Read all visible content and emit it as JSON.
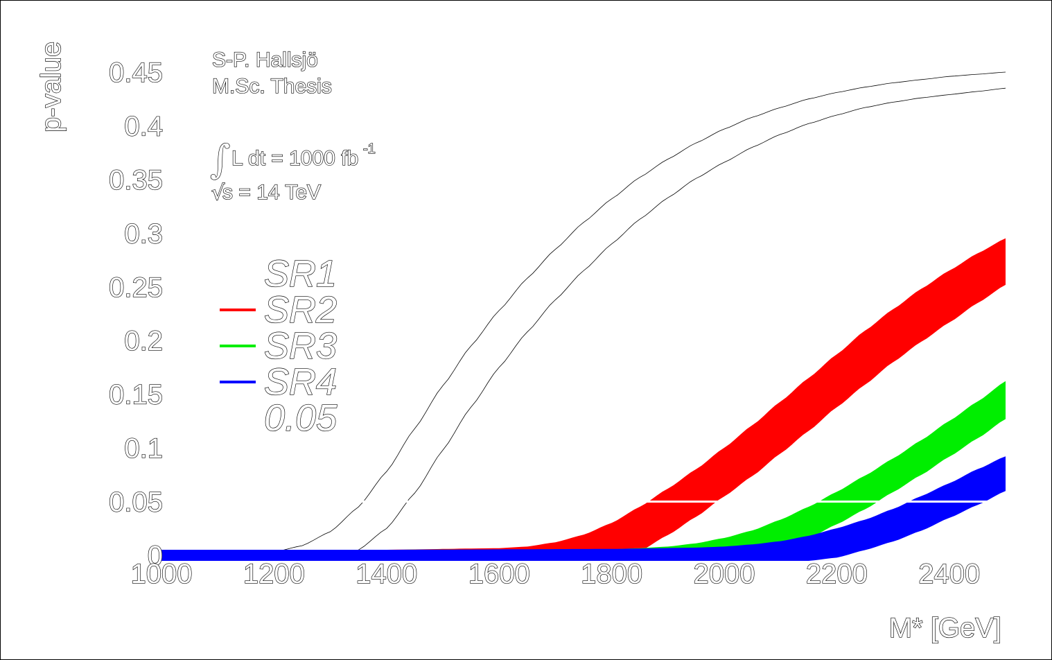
{
  "chart_data": {
    "type": "line",
    "title": "",
    "xlabel": "M* [GeV]",
    "ylabel": "p-value",
    "xlim": [
      1000,
      2500
    ],
    "ylim": [
      0,
      0.45
    ],
    "x_ticks": [
      "1000",
      "1200",
      "1400",
      "1600",
      "1800",
      "2000",
      "2200",
      "2400"
    ],
    "y_ticks": [
      "0",
      "0.05",
      "0.1",
      "0.15",
      "0.2",
      "0.25",
      "0.3",
      "0.35",
      "0.4",
      "0.45"
    ],
    "grid": false,
    "legend_position": "top-left",
    "annotations": {
      "author": "S-P. Hallsjö",
      "thesis": "M.Sc. Thesis",
      "lumi": "L dt = 1000 fb",
      "lumi_exp": "-1",
      "energy": "s = 14 TeV"
    },
    "series": [
      {
        "name": "SR1",
        "color": "#000000",
        "style": "band-outline",
        "x": [
          1000,
          1100,
          1200,
          1250,
          1300,
          1350,
          1400,
          1450,
          1500,
          1550,
          1600,
          1650,
          1700,
          1750,
          1800,
          1850,
          1900,
          1950,
          2000,
          2050,
          2100,
          2150,
          2200,
          2250,
          2300,
          2350,
          2400,
          2450,
          2500
        ],
        "upper": [
          0.0,
          0.001,
          0.003,
          0.009,
          0.022,
          0.045,
          0.078,
          0.118,
          0.158,
          0.195,
          0.228,
          0.258,
          0.285,
          0.31,
          0.332,
          0.352,
          0.369,
          0.384,
          0.397,
          0.408,
          0.417,
          0.425,
          0.431,
          0.436,
          0.44,
          0.443,
          0.446,
          0.448,
          0.45
        ],
        "lower": [
          0.0,
          0.0,
          0.0,
          0.0,
          0.0,
          0.005,
          0.025,
          0.058,
          0.098,
          0.138,
          0.175,
          0.208,
          0.238,
          0.265,
          0.29,
          0.313,
          0.333,
          0.351,
          0.366,
          0.38,
          0.392,
          0.402,
          0.41,
          0.417,
          0.422,
          0.426,
          0.429,
          0.432,
          0.435
        ]
      },
      {
        "name": "SR2",
        "color": "#ff0000",
        "style": "band",
        "x": [
          1000,
          1200,
          1400,
          1600,
          1650,
          1700,
          1750,
          1800,
          1850,
          1900,
          1950,
          2000,
          2050,
          2100,
          2150,
          2200,
          2250,
          2300,
          2350,
          2400,
          2450,
          2500
        ],
        "upper": [
          0.0,
          0.0,
          0.0,
          0.0015,
          0.003,
          0.007,
          0.014,
          0.025,
          0.04,
          0.057,
          0.075,
          0.095,
          0.116,
          0.138,
          0.16,
          0.182,
          0.204,
          0.224,
          0.243,
          0.26,
          0.276,
          0.29
        ],
        "lower": [
          0.0,
          0.0,
          0.0,
          0.0,
          0.0,
          0.0,
          0.0,
          0.0,
          0.009,
          0.024,
          0.041,
          0.06,
          0.079,
          0.1,
          0.121,
          0.143,
          0.164,
          0.185,
          0.204,
          0.222,
          0.24,
          0.257
        ]
      },
      {
        "name": "SR3",
        "color": "#00ee00",
        "style": "band",
        "x": [
          1000,
          1400,
          1800,
          1850,
          1900,
          1950,
          2000,
          2050,
          2100,
          2150,
          2200,
          2250,
          2300,
          2350,
          2400,
          2450,
          2500
        ],
        "upper": [
          0.0,
          0.0,
          0.0005,
          0.0015,
          0.003,
          0.006,
          0.011,
          0.018,
          0.028,
          0.04,
          0.054,
          0.069,
          0.085,
          0.102,
          0.12,
          0.138,
          0.157
        ],
        "lower": [
          0.0,
          0.0,
          0.0,
          0.0,
          0.0,
          0.0,
          0.0,
          0.003,
          0.01,
          0.021,
          0.034,
          0.048,
          0.064,
          0.08,
          0.097,
          0.114,
          0.132
        ]
      },
      {
        "name": "SR4",
        "color": "#0000ff",
        "style": "band",
        "x": [
          1000,
          1400,
          1800,
          1950,
          2000,
          2050,
          2100,
          2150,
          2200,
          2250,
          2300,
          2350,
          2400,
          2450,
          2500
        ],
        "upper": [
          0.0,
          0.0,
          0.0008,
          0.002,
          0.003,
          0.005,
          0.008,
          0.013,
          0.02,
          0.028,
          0.038,
          0.05,
          0.062,
          0.075,
          0.087
        ],
        "lower": [
          0.0,
          0.0,
          0.0,
          0.0,
          0.0,
          0.0,
          0.0,
          0.0,
          0.003,
          0.01,
          0.018,
          0.028,
          0.04,
          0.052,
          0.065
        ]
      },
      {
        "name": "0.05",
        "color": "#ffffff",
        "style": "line",
        "x": [
          1000,
          2500
        ],
        "values": [
          0.05,
          0.05
        ]
      }
    ]
  }
}
